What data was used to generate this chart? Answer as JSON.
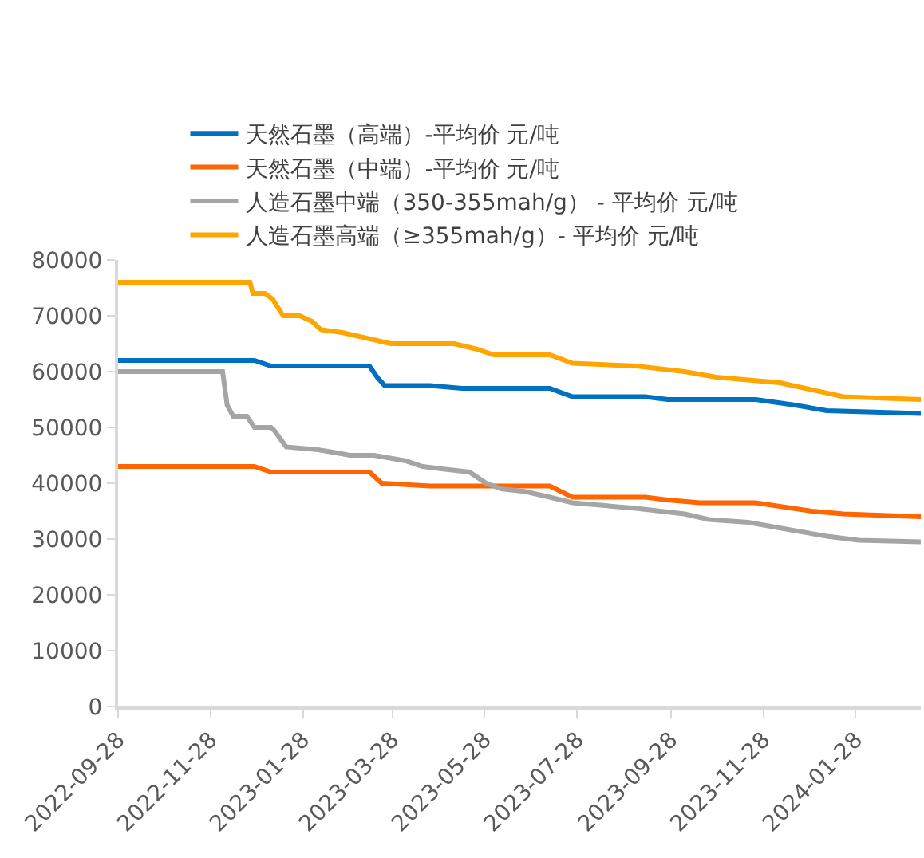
{
  "chart_data": {
    "type": "line",
    "legend": "top",
    "grid": false,
    "marker": "none",
    "line_style": "solid",
    "xlim": [
      "2022-09-28",
      "2024-03-11"
    ],
    "xticks": [
      "2022-09-28",
      "2022-11-28",
      "2023-01-28",
      "2023-03-28",
      "2023-05-28",
      "2023-07-28",
      "2023-09-28",
      "2023-11-28",
      "2024-01-28"
    ],
    "ylim": [
      0,
      80000
    ],
    "yticks": [
      0,
      10000,
      20000,
      30000,
      40000,
      50000,
      60000,
      70000,
      80000
    ],
    "series": [
      {
        "name": "天然石墨（高端）-平均价 元/吨",
        "color": "#0070c0",
        "x": [
          "2022-09-28",
          "2022-12-27",
          "2023-01-07",
          "2023-03-13",
          "2023-03-18",
          "2023-03-23",
          "2023-04-22",
          "2023-05-13",
          "2023-07-10",
          "2023-07-25",
          "2023-09-11",
          "2023-09-26",
          "2023-11-23",
          "2023-12-19",
          "2024-01-09",
          "2024-03-11"
        ],
        "values": [
          62000,
          62000,
          61000,
          61000,
          59000,
          57500,
          57500,
          57000,
          57000,
          55500,
          55500,
          55000,
          55000,
          54000,
          53000,
          52500
        ]
      },
      {
        "name": "天然石墨（中端）-平均价 元/吨",
        "color": "#ff6600",
        "x": [
          "2022-09-28",
          "2022-12-27",
          "2023-01-07",
          "2023-03-13",
          "2023-03-21",
          "2023-04-22",
          "2023-07-10",
          "2023-07-25",
          "2023-09-11",
          "2023-09-26",
          "2023-10-17",
          "2023-11-23",
          "2023-12-30",
          "2024-01-20",
          "2024-03-11"
        ],
        "values": [
          43000,
          43000,
          42000,
          42000,
          40000,
          39500,
          39500,
          37500,
          37500,
          37000,
          36500,
          36500,
          35000,
          34500,
          34000
        ]
      },
      {
        "name": "人造石墨中端（350-355mah/g） - 平均价 元/吨",
        "color": "#a5a5a5",
        "x": [
          "2022-09-28",
          "2022-12-06",
          "2022-12-09",
          "2022-12-13",
          "2022-12-22",
          "2022-12-27",
          "2023-01-07",
          "2023-01-09",
          "2023-01-17",
          "2023-02-07",
          "2023-02-18",
          "2023-02-28",
          "2023-03-16",
          "2023-04-06",
          "2023-04-17",
          "2023-05-02",
          "2023-05-18",
          "2023-05-29",
          "2023-06-08",
          "2023-06-24",
          "2023-07-10",
          "2023-07-25",
          "2023-09-05",
          "2023-10-07",
          "2023-10-23",
          "2023-11-18",
          "2023-12-19",
          "2024-01-09",
          "2024-01-30",
          "2024-03-11"
        ],
        "values": [
          60000,
          60000,
          54000,
          52000,
          52000,
          50000,
          50000,
          49500,
          46500,
          46000,
          45500,
          45000,
          45000,
          44000,
          43000,
          42500,
          42000,
          40000,
          39000,
          38500,
          37500,
          36500,
          35500,
          34500,
          33500,
          33000,
          31500,
          30500,
          29800,
          29500
        ]
      },
      {
        "name": "人造石墨高端（≥355mah/g）- 平均价 元/吨",
        "color": "#ffa500",
        "x": [
          "2022-09-28",
          "2022-12-24",
          "2022-12-26",
          "2023-01-03",
          "2023-01-08",
          "2023-01-15",
          "2023-01-26",
          "2023-02-03",
          "2023-02-09",
          "2023-02-23",
          "2023-03-11",
          "2023-03-27",
          "2023-05-08",
          "2023-05-23",
          "2023-06-03",
          "2023-07-10",
          "2023-07-25",
          "2023-09-05",
          "2023-10-07",
          "2023-10-28",
          "2023-12-09",
          "2024-01-20",
          "2024-03-11"
        ],
        "values": [
          76000,
          76000,
          74000,
          74000,
          73000,
          70000,
          70000,
          69000,
          67500,
          67000,
          66000,
          65000,
          65000,
          64000,
          63000,
          63000,
          61500,
          61000,
          60000,
          59000,
          58000,
          55500,
          55000
        ]
      }
    ]
  }
}
